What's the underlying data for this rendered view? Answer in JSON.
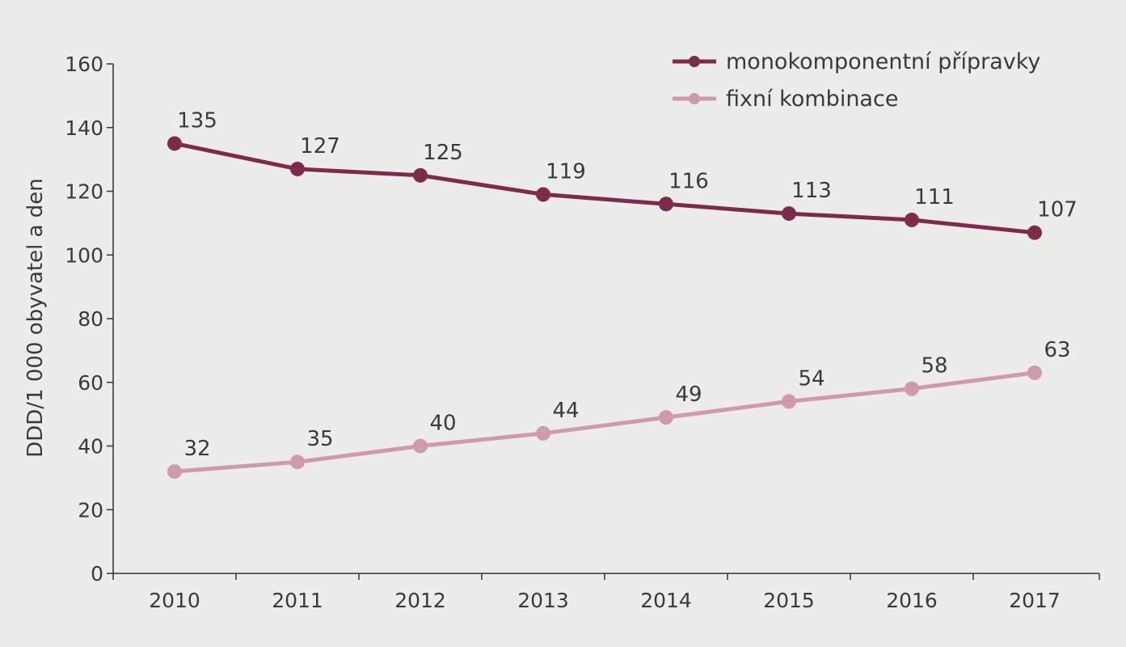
{
  "chart_data": {
    "type": "line",
    "x": [
      "2010",
      "2011",
      "2012",
      "2013",
      "2014",
      "2015",
      "2016",
      "2017"
    ],
    "series": [
      {
        "name": "monokomponentní přípravky",
        "color": "#7e2a4c",
        "values": [
          135,
          127,
          125,
          119,
          116,
          113,
          111,
          107
        ]
      },
      {
        "name": "fixní kombinace",
        "color": "#cf9aad",
        "values": [
          32,
          35,
          40,
          44,
          49,
          54,
          58,
          63
        ]
      }
    ],
    "ylabel": "DDD/1 000 obyvatel a den",
    "xlabel": "",
    "ylim": [
      0,
      160
    ],
    "yticks": [
      0,
      20,
      40,
      60,
      80,
      100,
      120,
      140,
      160
    ],
    "grid": false,
    "legend_position": "top-right",
    "background": "#ececeb",
    "axis_color": "#333333"
  }
}
